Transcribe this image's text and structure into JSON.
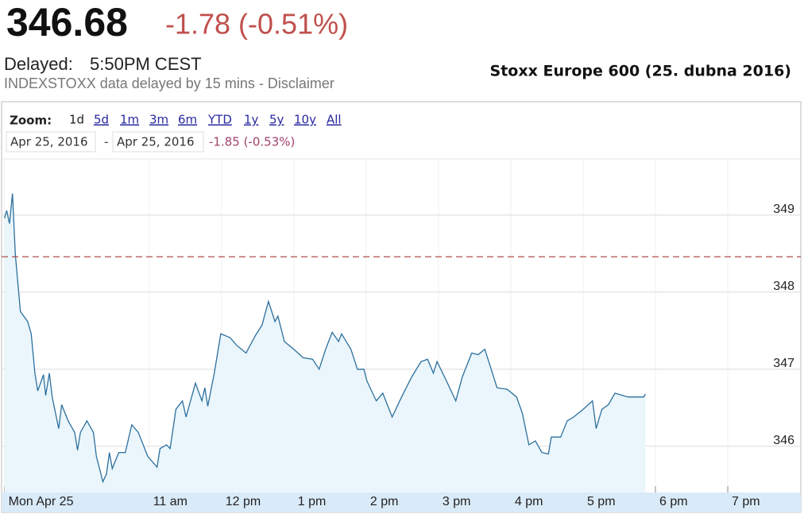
{
  "header": {
    "price": "346.68",
    "change": "-1.78 (-0.51%)",
    "delayed_label": "Delayed:",
    "time": "5:50PM CEST",
    "disclaimer": "INDEXSTOXX data delayed by 15 mins - Disclaimer"
  },
  "controls": {
    "zoom_label": "Zoom:",
    "zoom_options": [
      "1d",
      "5d",
      "1m",
      "3m",
      "6m",
      "YTD",
      "1y",
      "5y",
      "10y",
      "All"
    ],
    "zoom_selected": 0,
    "date_from": "Apr 25, 2016",
    "date_separator": "-",
    "date_to": "Apr 25, 2016",
    "range_change": "-1.85 (-0.53%)"
  },
  "chart_data": {
    "type": "line",
    "title": "Stoxx Europe 600 (25. dubna 2016)",
    "x": [
      9.0,
      9.03,
      9.07,
      9.11,
      9.15,
      9.22,
      9.32,
      9.37,
      9.42,
      9.46,
      9.54,
      9.57,
      9.62,
      9.66,
      9.75,
      9.79,
      9.88,
      9.97,
      10.01,
      10.05,
      10.14,
      10.23,
      10.27,
      10.36,
      10.41,
      10.45,
      10.49,
      10.58,
      10.67,
      10.76,
      10.85,
      10.98,
      11.11,
      11.15,
      11.24,
      11.29,
      11.37,
      11.46,
      11.51,
      11.64,
      11.73,
      11.77,
      11.81,
      11.9,
      11.99,
      12.12,
      12.21,
      12.34,
      12.47,
      12.56,
      12.65,
      12.74,
      12.78,
      12.87,
      13.0,
      13.13,
      13.26,
      13.35,
      13.44,
      13.53,
      13.62,
      13.66,
      13.79,
      13.88,
      13.97,
      14.01,
      14.14,
      14.23,
      14.36,
      14.49,
      14.63,
      14.76,
      14.85,
      14.93,
      14.98,
      15.11,
      15.24,
      15.33,
      15.46,
      15.55,
      15.64,
      15.73,
      15.81,
      15.95,
      16.08,
      16.16,
      16.25,
      16.34,
      16.43,
      16.52,
      16.56,
      16.69,
      16.78,
      16.87,
      17.0,
      17.13,
      17.18,
      17.26,
      17.35,
      17.44,
      17.62,
      17.84,
      17.86
    ],
    "series": [
      {
        "color": "#2c6f9c",
        "values": [
          348.96,
          349.06,
          348.89,
          349.28,
          348.49,
          347.75,
          347.62,
          347.46,
          346.95,
          346.72,
          346.93,
          346.66,
          346.95,
          346.64,
          346.23,
          346.54,
          346.33,
          346.18,
          345.95,
          346.18,
          346.33,
          346.18,
          345.87,
          345.54,
          345.64,
          345.92,
          345.71,
          345.92,
          345.92,
          346.28,
          346.18,
          345.87,
          345.73,
          345.97,
          346.02,
          345.97,
          346.48,
          346.59,
          346.38,
          346.82,
          346.59,
          346.76,
          346.52,
          346.95,
          347.46,
          347.41,
          347.31,
          347.21,
          347.44,
          347.57,
          347.88,
          347.62,
          347.69,
          347.36,
          347.26,
          347.15,
          347.13,
          347.0,
          347.26,
          347.48,
          347.36,
          347.46,
          347.26,
          347.0,
          347.0,
          346.85,
          346.59,
          346.69,
          346.38,
          346.64,
          346.9,
          347.1,
          347.13,
          346.95,
          347.1,
          346.85,
          346.59,
          346.9,
          347.21,
          347.19,
          347.26,
          347.0,
          346.76,
          346.74,
          346.64,
          346.43,
          346.02,
          346.07,
          345.92,
          345.9,
          346.12,
          346.12,
          346.33,
          346.38,
          346.48,
          346.59,
          346.23,
          346.48,
          346.54,
          346.69,
          346.64,
          346.64,
          346.68
        ]
      }
    ],
    "fill_color": "#eaf6fc",
    "reference_line": {
      "value": 348.46,
      "color": "#a33a3a"
    },
    "xlim": [
      8.96,
      20.01
    ],
    "xticks": [
      {
        "value": 9,
        "label": "Mon Apr 25"
      },
      {
        "value": 11,
        "label": "11 am"
      },
      {
        "value": 12,
        "label": "12 pm"
      },
      {
        "value": 13,
        "label": "1 pm"
      },
      {
        "value": 14,
        "label": "2 pm"
      },
      {
        "value": 15,
        "label": "3 pm"
      },
      {
        "value": 16,
        "label": "4 pm"
      },
      {
        "value": 17,
        "label": "5 pm"
      },
      {
        "value": 18,
        "label": "6 pm"
      },
      {
        "value": 19,
        "label": "7 pm"
      }
    ],
    "ylim": [
      345.4,
      349.73
    ],
    "yticks": [
      346,
      347,
      348,
      349
    ],
    "grid": true
  }
}
